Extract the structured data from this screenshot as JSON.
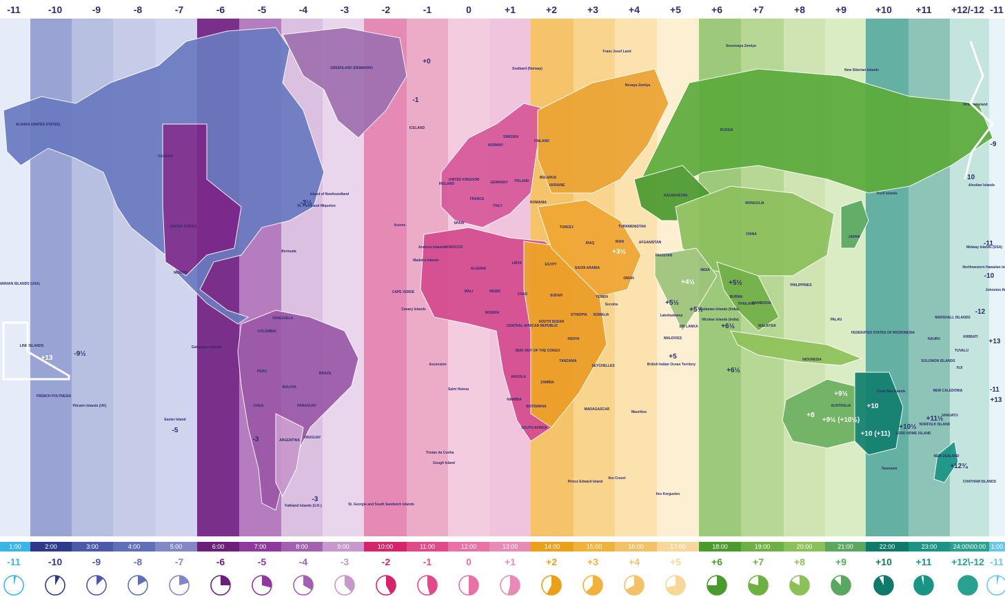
{
  "zones": [
    {
      "top": "-11",
      "time": "1:00",
      "bottom": "-11",
      "color": "#3bb4e6",
      "frac": 0.04
    },
    {
      "top": "-10",
      "time": "2:00",
      "bottom": "-10",
      "color": "#2d3a8c",
      "frac": 0.08
    },
    {
      "top": "-9",
      "time": "3:00",
      "bottom": "-9",
      "color": "#4a5aa8",
      "frac": 0.125
    },
    {
      "top": "-8",
      "time": "4:00",
      "bottom": "-8",
      "color": "#5f6fb8",
      "frac": 0.17
    },
    {
      "top": "-7",
      "time": "5:00",
      "bottom": "-7",
      "color": "#8288c6",
      "frac": 0.21
    },
    {
      "top": "-6",
      "time": "6:00",
      "bottom": "-6",
      "color": "#6b1e7a",
      "frac": 0.25
    },
    {
      "top": "-5",
      "time": "7:00",
      "bottom": "-5",
      "color": "#8e3a9c",
      "frac": 0.29
    },
    {
      "top": "-4",
      "time": "8:00",
      "bottom": "-4",
      "color": "#a35fb0",
      "frac": 0.33
    },
    {
      "top": "-3",
      "time": "9:00",
      "bottom": "-3",
      "color": "#c798cc",
      "frac": 0.375
    },
    {
      "top": "-2",
      "time": "10:00",
      "bottom": "-2",
      "color": "#d4256a",
      "frac": 0.42
    },
    {
      "top": "-1",
      "time": "11:00",
      "bottom": "-1",
      "color": "#e04a8a",
      "frac": 0.46
    },
    {
      "top": "0",
      "time": "12:00",
      "bottom": "0",
      "color": "#e672a6",
      "frac": 0.5
    },
    {
      "top": "+1",
      "time": "13:00",
      "bottom": "+1",
      "color": "#e88ab6",
      "frac": 0.54
    },
    {
      "top": "+2",
      "time": "14:00",
      "bottom": "+2",
      "color": "#eba01a",
      "frac": 0.58
    },
    {
      "top": "+3",
      "time": "15:00",
      "bottom": "+3",
      "color": "#f0b23c",
      "frac": 0.625
    },
    {
      "top": "+4",
      "time": "16:00",
      "bottom": "+4",
      "color": "#f4c266",
      "frac": 0.67
    },
    {
      "top": "+5",
      "time": "17:00",
      "bottom": "+5",
      "color": "#f8d89a",
      "frac": 0.71
    },
    {
      "top": "+6",
      "time": "18:00",
      "bottom": "+6",
      "color": "#4a9a2e",
      "frac": 0.75
    },
    {
      "top": "+7",
      "time": "19:00",
      "bottom": "+7",
      "color": "#6fb044",
      "frac": 0.79
    },
    {
      "top": "+8",
      "time": "20:00",
      "bottom": "+8",
      "color": "#8cc058",
      "frac": 0.83
    },
    {
      "top": "+9",
      "time": "21:00",
      "bottom": "+9",
      "color": "#5aa860",
      "frac": 0.875
    },
    {
      "top": "+10",
      "time": "22:00",
      "bottom": "+10",
      "color": "#0f7a6a",
      "frac": 0.92
    },
    {
      "top": "+11",
      "time": "23:00",
      "bottom": "+11",
      "color": "#1a9484",
      "frac": 0.96
    },
    {
      "top": "+12/-12",
      "time": "24:00\\00:00",
      "bottom": "+12\\-12",
      "color": "#2aa090",
      "frac": 1.0
    },
    {
      "top": "-11",
      "time": "1:00",
      "bottom": "-11",
      "color": "#6cc6ec",
      "frac": 0.04
    }
  ],
  "bandColors": [
    "#e6ecf7",
    "#9aa4d4",
    "#b8c0e2",
    "#c6cce8",
    "#d0d4ec",
    "#7a2f8a",
    "#b57cc0",
    "#dcc0e2",
    "#ead6ec",
    "#e48ab4",
    "#ecacc8",
    "#f4cce0",
    "#f0c4dc",
    "#f4c36a",
    "#f8d48c",
    "#fbe2ae",
    "#fdf0d2",
    "#9cc97a",
    "#b6d894",
    "#cfe4b2",
    "#daecc4",
    "#64b0a2",
    "#8ec4b8",
    "#c4e4de",
    "#e8f4f8"
  ],
  "countries": [
    "ALASKA (UNITED STATES)",
    "CANADA",
    "UNITED STATES",
    "MEXICO",
    "GREENLAND (DENMARK)",
    "ICELAND",
    "Svalbard (Norway)",
    "Franz Josef Land",
    "Novaya Zemlya",
    "Severnaya Zemlya",
    "New Siberian Islands",
    "Wrangel Island",
    "Island of Newfoundland",
    "St. Pierre and Miquelon",
    "Bermuda",
    "Azores",
    "Galapagos Islands",
    "Easter Island",
    "Pitcairn Islands (UK)",
    "FRENCH POLYNESIA",
    "LINE ISLANDS",
    "KIRIBATI",
    "HAWAIIAN ISLANDS (USA)",
    "Falkland Islands (U.K.)",
    "St. Georgia and South Sandwich Islands",
    "Tristan da Cunha",
    "Gough Island",
    "Saint Helena",
    "Ascension",
    "CAPE VERDE",
    "BRAZIL",
    "BOLIVIA",
    "PERU",
    "COLOMBIA",
    "VENEZUELA",
    "PARAGUAY",
    "CHILE",
    "ARGENTINA",
    "URUGUAY",
    "UNITED KINGDOM",
    "IRELAND",
    "FRANCE",
    "SPAIN",
    "GERMANY",
    "POLAND",
    "ITALY",
    "NORWAY",
    "SWEDEN",
    "FINLAND",
    "BELARUS",
    "UKRAINE",
    "ROMANIA",
    "TURKEY",
    "MOROCCO",
    "ALGERIA",
    "LIBYA",
    "EGYPT",
    "MALI",
    "NIGER",
    "CHAD",
    "SUDAN",
    "NIGERIA",
    "CENTRAL AFRICAN REPUBLIC",
    "SOUTH SUDAN",
    "ETHIOPIA",
    "SOMALIA",
    "KENYA",
    "DEM. REP. OF THE CONGO",
    "TANZANIA",
    "ANGOLA",
    "ZAMBIA",
    "NAMIBIA",
    "BOTSWANA",
    "SOUTH AFRICA",
    "MADAGASCAR",
    "SEYCHELLES",
    "Mauritius",
    "Prince Edward Island",
    "Iles Crozet",
    "Iles Kerguelen",
    "SAUDI ARABIA",
    "IRAQ",
    "IRAN",
    "YEMEN",
    "OMAN",
    "Socotra",
    "TURKMENISTAN",
    "AFGANISTAN",
    "PAKISTAN",
    "INDIA",
    "SRI LANKA",
    "MALDIVES",
    "British Indian Ocean Territory",
    "KAZAKHSTAN",
    "RUSSIA",
    "MONGOLIA",
    "CHINA",
    "BURMA",
    "THAILAND",
    "CAMBODIA",
    "MALAYSIA",
    "PHILIPPINES",
    "INDONESIA",
    "PALAU",
    "JAPAN",
    "Kuril Islands",
    "AUSTRALIA",
    "Tasmania",
    "NEW ZEALAND",
    "CHATHAM ISLANDS",
    "FEDERATED STATES OF MICRONESIA",
    "MARSHALL ISLANDS",
    "NAURU",
    "SOLOMON ISLANDS",
    "NEW CALEDONIA",
    "VANUATU",
    "FIJI",
    "TUVALU",
    "Coral Sea Islands",
    "LORD HOWE ISLAND",
    "NORFOLK ISLAND",
    "Midway Islands (USA)",
    "Northwestern Hawaiian Islands (USA)",
    "Johnston Atoll",
    "Aleutian Islands",
    "Andaman Islands (India)",
    "Nicobar Islands (India)",
    "Lakshadweep",
    "Andorra Islands",
    "Canary Islands",
    "Madeira Islands"
  ],
  "inlineOffsets": [
    "+0",
    "-1",
    "-3½",
    "-9½",
    "+13",
    "-5",
    "-3",
    "-3",
    "+3½",
    "+4½",
    "+5½",
    "+6½",
    "+5",
    "+5½",
    "+5½",
    "+6½",
    "+8",
    "+9½",
    "+9½ (+10½)",
    "+10",
    "+10 (+11)",
    "+10½",
    "+11½",
    "+12¾",
    "-11",
    "-10",
    "-12",
    "+13",
    "-11",
    "+13",
    "-9",
    "-10"
  ],
  "icons": [
    "clock-icon"
  ]
}
